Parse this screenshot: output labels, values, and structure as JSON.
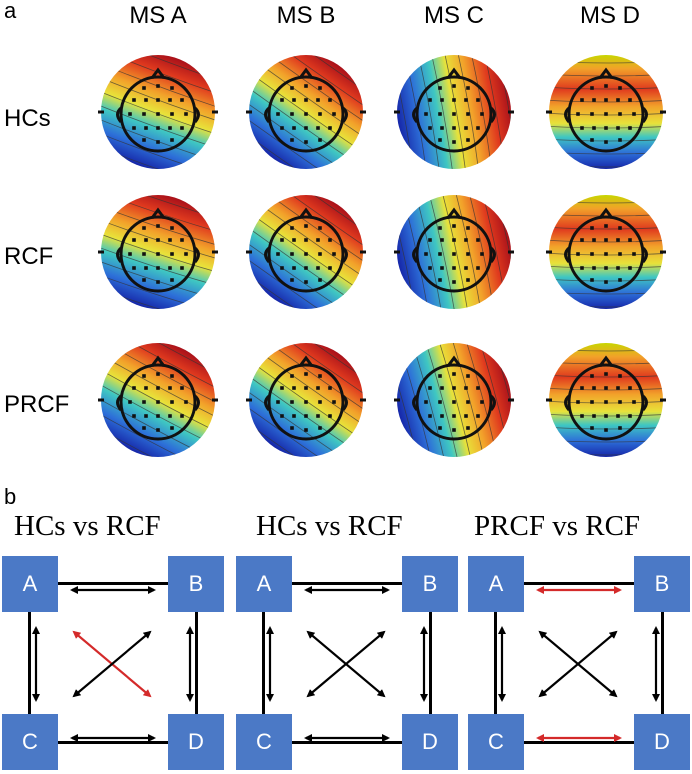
{
  "panel_a": {
    "label": "a",
    "columns": [
      "MS A",
      "MS B",
      "MS C",
      "MS D"
    ],
    "rows": [
      "HCs",
      "RCF",
      "PRCF"
    ]
  },
  "panel_b": {
    "label": "b",
    "comparisons": [
      {
        "title": "HCs vs RCF",
        "nodes": [
          "A",
          "B",
          "C",
          "D"
        ],
        "edges": {
          "AB": "#000000",
          "CD": "#000000",
          "AC": "#000000",
          "BD": "#000000",
          "AD": "#d42a2a",
          "BC": "#000000"
        }
      },
      {
        "title": "HCs vs RCF",
        "nodes": [
          "A",
          "B",
          "C",
          "D"
        ],
        "edges": {
          "AB": "#000000",
          "CD": "#000000",
          "AC": "#000000",
          "BD": "#000000",
          "AD": "#000000",
          "BC": "#000000"
        }
      },
      {
        "title": "PRCF vs RCF",
        "nodes": [
          "A",
          "B",
          "C",
          "D"
        ],
        "edges": {
          "AB": "#d42a2a",
          "CD": "#d42a2a",
          "AC": "#000000",
          "BD": "#000000",
          "AD": "#000000",
          "BC": "#000000"
        }
      }
    ]
  },
  "colors": {
    "node_fill": "#4b79c6",
    "significant": "#d42a2a",
    "default": "#000000"
  }
}
